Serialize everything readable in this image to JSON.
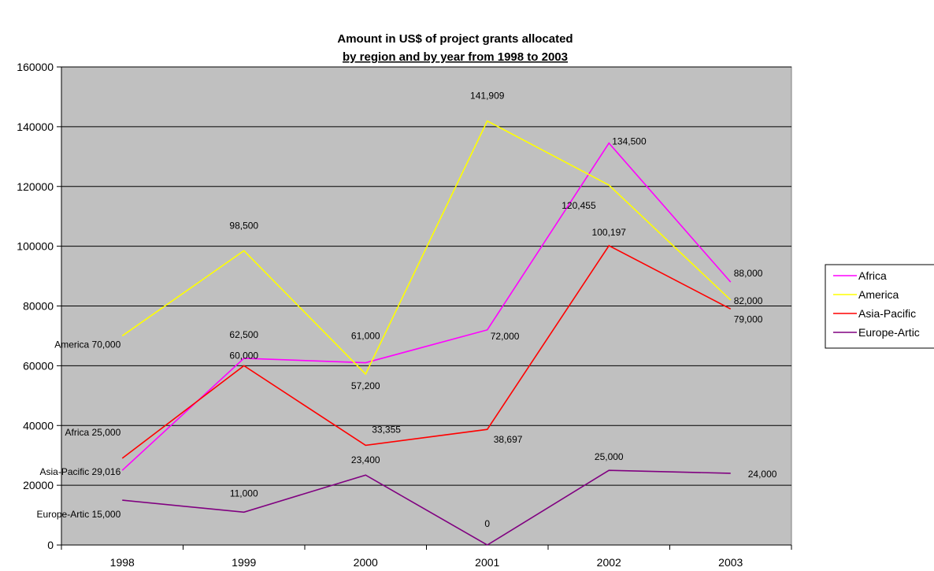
{
  "chart_data": {
    "type": "line",
    "title_line1": "Amount in US$ of project grants allocated",
    "title_line2": {
      "t1": "by region",
      "t2": " and ",
      "t3": "by year",
      "t4": " from 1998 to 2003"
    },
    "categories": [
      "1998",
      "1999",
      "2000",
      "2001",
      "2002",
      "2003"
    ],
    "ylim": [
      0,
      160000
    ],
    "yticks": [
      "0",
      "20000",
      "40000",
      "60000",
      "80000",
      "100000",
      "120000",
      "140000",
      "160000"
    ],
    "grid": true,
    "legend_position": "right",
    "plot_background": "#c0c0c0",
    "series": [
      {
        "name": "Africa",
        "color": "#ff00ff",
        "values": [
          25000,
          62500,
          61000,
          72000,
          134500,
          88000
        ],
        "labels": [
          "Africa 25,000",
          "62,500",
          "61,000",
          "72,000",
          "134,500",
          "88,000"
        ]
      },
      {
        "name": "America",
        "color": "#ffff00",
        "values": [
          70000,
          98500,
          57200,
          141909,
          120455,
          82000
        ],
        "labels": [
          "America 70,000",
          "98,500",
          "57,200",
          "141,909",
          "120,455",
          "82,000"
        ]
      },
      {
        "name": "Asia-Pacific",
        "color": "#ff0000",
        "values": [
          29016,
          60000,
          33355,
          38697,
          100197,
          79000
        ],
        "labels": [
          "Asia-Pacific 29,016",
          "60,000",
          "33,355",
          "38,697",
          "100,197",
          "79,000"
        ]
      },
      {
        "name": "Europe-Artic",
        "color": "#800080",
        "values": [
          15000,
          11000,
          23400,
          0,
          25000,
          24000
        ],
        "labels": [
          "Europe-Artic 15,000",
          "11,000",
          "23,400",
          "0",
          "25,000",
          "24,000"
        ]
      }
    ]
  }
}
